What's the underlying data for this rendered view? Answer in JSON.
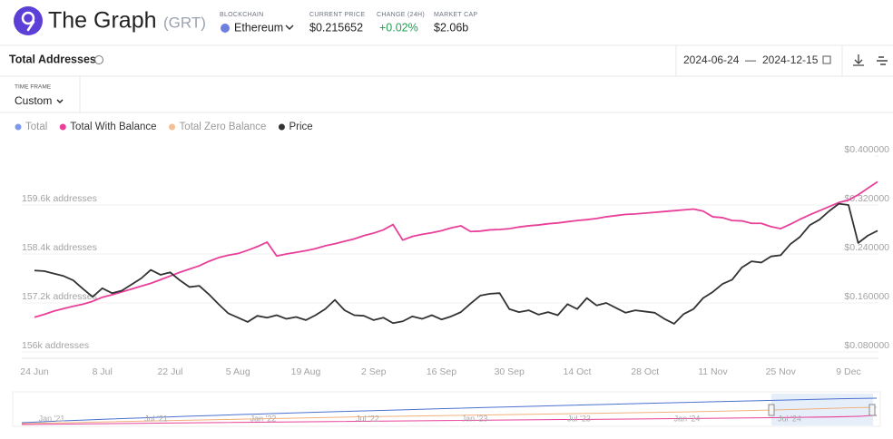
{
  "header": {
    "name": "The Graph",
    "ticker": "(GRT)",
    "stats": [
      {
        "label": "BLOCKCHAIN",
        "value": "Ethereum"
      },
      {
        "label": "CURRENT PRICE",
        "value": "$0.215652"
      },
      {
        "label": "CHANGE (24H)",
        "value": "+0.02%"
      },
      {
        "label": "MARKET CAP",
        "value": "$2.06b"
      }
    ]
  },
  "toolbar": {
    "title": "Total Addresses",
    "date_from": "2024-06-24",
    "separator": "—",
    "date_to": "2024-12-15",
    "timeframe_label": "TIME FRAME",
    "timeframe": "Custom"
  },
  "chart_data": {
    "type": "line",
    "categories": [
      "24 Jun",
      null,
      null,
      null,
      null,
      null,
      null,
      "8 Jul",
      null,
      null,
      null,
      null,
      null,
      null,
      "22 Jul",
      null,
      null,
      null,
      null,
      null,
      null,
      "5 Aug",
      null,
      null,
      null,
      null,
      null,
      null,
      "19 Aug",
      null,
      null,
      null,
      null,
      null,
      null,
      "2 Sep",
      null,
      null,
      null,
      null,
      null,
      null,
      "16 Sep",
      null,
      null,
      null,
      null,
      null,
      null,
      "30 Sep",
      null,
      null,
      null,
      null,
      null,
      null,
      "14 Oct",
      null,
      null,
      null,
      null,
      null,
      null,
      "28 Oct",
      null,
      null,
      null,
      null,
      null,
      null,
      "11 Nov",
      null,
      null,
      null,
      null,
      null,
      null,
      "25 Nov",
      null,
      null,
      null,
      null,
      null,
      null,
      "9 Dec",
      null,
      null,
      null
    ],
    "hidden_series": [
      {
        "name": "Total",
        "color": "#7b9be8"
      },
      {
        "name": "Total Zero Balance",
        "color": "#f5bf95"
      }
    ],
    "series": [
      {
        "name": "Total With Balance",
        "color": "#e8409a",
        "values": [
          156850,
          156920,
          157000,
          157060,
          157120,
          157170,
          157240,
          157340,
          157400,
          157470,
          157540,
          157610,
          157680,
          157770,
          157860,
          157950,
          158030,
          158110,
          158220,
          158310,
          158370,
          158410,
          158490,
          158580,
          158690,
          158350,
          158400,
          158440,
          158480,
          158530,
          158600,
          158650,
          158710,
          158770,
          158850,
          158910,
          158990,
          159120,
          158740,
          158830,
          158880,
          158920,
          158970,
          159040,
          159090,
          158950,
          158960,
          158990,
          159000,
          159020,
          159060,
          159090,
          159110,
          159140,
          159160,
          159190,
          159220,
          159240,
          159270,
          159310,
          159340,
          159370,
          159380,
          159400,
          159420,
          159440,
          159460,
          159480,
          159500,
          159450,
          159310,
          159290,
          159220,
          159210,
          159150,
          159150,
          159070,
          159020,
          159130,
          159250,
          159360,
          159460,
          159560,
          159660,
          159720,
          159850,
          160010,
          160170
        ]
      },
      {
        "name": "Price",
        "color": "#333333",
        "axis": "y2",
        "values": [
          0.213,
          0.212,
          0.208,
          0.204,
          0.197,
          0.183,
          0.17,
          0.184,
          0.176,
          0.18,
          0.19,
          0.2,
          0.214,
          0.206,
          0.21,
          0.197,
          0.186,
          0.188,
          0.174,
          0.158,
          0.143,
          0.136,
          0.129,
          0.139,
          0.136,
          0.14,
          0.134,
          0.137,
          0.132,
          0.14,
          0.15,
          0.165,
          0.148,
          0.14,
          0.139,
          0.132,
          0.136,
          0.127,
          0.13,
          0.138,
          0.134,
          0.14,
          0.133,
          0.138,
          0.145,
          0.159,
          0.172,
          0.175,
          0.176,
          0.15,
          0.145,
          0.148,
          0.141,
          0.145,
          0.14,
          0.158,
          0.15,
          0.168,
          0.156,
          0.16,
          0.152,
          0.144,
          0.148,
          0.146,
          0.144,
          0.134,
          0.126,
          0.142,
          0.15,
          0.168,
          0.178,
          0.191,
          0.198,
          0.218,
          0.228,
          0.226,
          0.236,
          0.238,
          0.256,
          0.268,
          0.287,
          0.296,
          0.31,
          0.322,
          0.32,
          0.258,
          0.27,
          0.278
        ]
      }
    ],
    "ylim": [
      156000,
      160800
    ],
    "yticks": [
      {
        "value": 156000,
        "label": "156k addresses"
      },
      {
        "value": 157200,
        "label": "157.2k addresses"
      },
      {
        "value": 158400,
        "label": "158.4k addresses"
      },
      {
        "value": 159600,
        "label": "159.6k addresses"
      }
    ],
    "y2lim": [
      0.08,
      0.4
    ],
    "y2ticks": [
      {
        "value": 0.08,
        "label": "$0.080000"
      },
      {
        "value": 0.16,
        "label": "$0.160000"
      },
      {
        "value": 0.24,
        "label": "$0.240000"
      },
      {
        "value": 0.32,
        "label": "$0.320000"
      },
      {
        "value": 0.4,
        "label": "$0.400000"
      }
    ],
    "grid": true,
    "navigator_labels": [
      "Jan '21",
      "Jul '21",
      "Jan '22",
      "Jul '22",
      "Jan '23",
      "Jul '23",
      "Jan '24",
      "Jul '24"
    ]
  }
}
